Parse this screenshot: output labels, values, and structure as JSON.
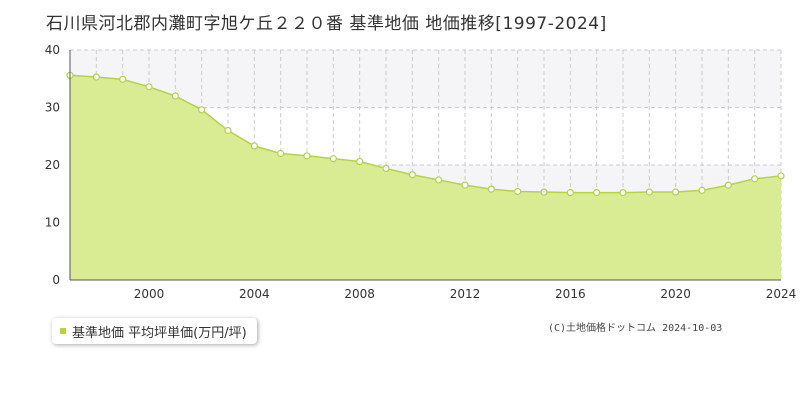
{
  "title": "石川県河北郡内灘町字旭ケ丘２２０番 基準地価 地価推移[1997-2024]",
  "copyright": "(C)土地価格ドットコム 2024-10-03",
  "legend": {
    "label": "基準地価 平均坪単価(万円/坪)"
  },
  "colors": {
    "fill": "#d9ec93",
    "line": "#b3d443",
    "point_fill": "#ffffff",
    "point_stroke": "#b3d443",
    "band": "#f5f5f7",
    "grid": "#cccccc",
    "axis": "#555555"
  },
  "chart_data": {
    "type": "area",
    "title": "石川県河北郡内灘町字旭ケ丘２２０番 基準地価 地価推移[1997-2024]",
    "xlabel": "",
    "ylabel": "",
    "xlim": [
      1997,
      2024
    ],
    "ylim": [
      0,
      40
    ],
    "y_ticks": [
      0,
      10,
      20,
      30,
      40
    ],
    "x_ticks": [
      2000,
      2004,
      2008,
      2012,
      2016,
      2020,
      2024
    ],
    "grid": true,
    "legend_position": "bottom-left",
    "series": [
      {
        "name": "基準地価 平均坪単価(万円/坪)",
        "x": [
          1997,
          1998,
          1999,
          2000,
          2001,
          2002,
          2003,
          2004,
          2005,
          2006,
          2007,
          2008,
          2009,
          2010,
          2011,
          2012,
          2013,
          2014,
          2015,
          2016,
          2017,
          2018,
          2019,
          2020,
          2021,
          2022,
          2023,
          2024
        ],
        "values": [
          35.6,
          35.3,
          34.9,
          33.6,
          32.0,
          29.6,
          26.0,
          23.3,
          22.0,
          21.6,
          21.1,
          20.6,
          19.4,
          18.3,
          17.4,
          16.5,
          15.8,
          15.4,
          15.3,
          15.2,
          15.2,
          15.2,
          15.3,
          15.3,
          15.6,
          16.5,
          17.6,
          18.1
        ]
      }
    ]
  }
}
